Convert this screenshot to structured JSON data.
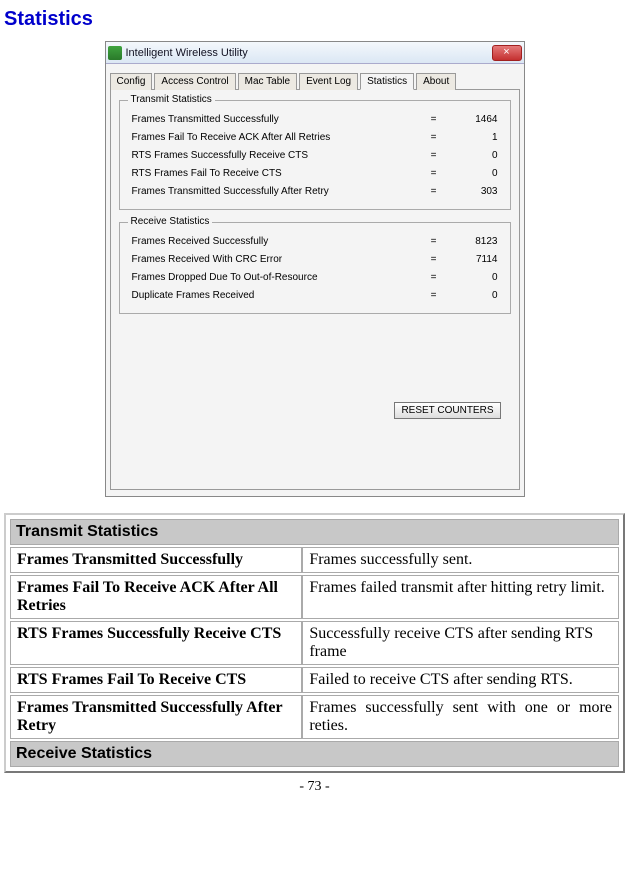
{
  "page": {
    "title": "Statistics",
    "pageNum": "- 73 -"
  },
  "window": {
    "title": "Intelligent Wireless Utility",
    "closeGlyph": "×",
    "tabs": [
      "Config",
      "Access Control",
      "Mac Table",
      "Event Log",
      "Statistics",
      "About"
    ],
    "activeTabIndex": 4,
    "resetLabel": "RESET COUNTERS"
  },
  "transmit": {
    "legend": "Transmit Statistics",
    "rows": [
      {
        "label": "Frames Transmitted Successfully",
        "value": "1464"
      },
      {
        "label": "Frames Fail To Receive ACK After All Retries",
        "value": "1"
      },
      {
        "label": "RTS Frames Successfully Receive CTS",
        "value": "0"
      },
      {
        "label": "RTS Frames Fail To Receive CTS",
        "value": "0"
      },
      {
        "label": "Frames Transmitted Successfully After Retry",
        "value": "303"
      }
    ]
  },
  "receive": {
    "legend": "Receive Statistics",
    "rows": [
      {
        "label": "Frames Received Successfully",
        "value": "8123"
      },
      {
        "label": "Frames Received With CRC Error",
        "value": "7114"
      },
      {
        "label": "Frames Dropped Due To Out-of-Resource",
        "value": "0"
      },
      {
        "label": "Duplicate Frames Received",
        "value": "0"
      }
    ]
  },
  "doc": {
    "section1": "Transmit Statistics",
    "section2": "Receive Statistics",
    "rows": [
      {
        "l": "Frames Transmitted Successfully",
        "r": "Frames successfully sent."
      },
      {
        "l": "Frames Fail To Receive ACK After All Retries",
        "r": "Frames failed transmit after hitting retry limit."
      },
      {
        "l": "RTS Frames Successfully Receive CTS",
        "r": "Successfully receive CTS after sending RTS frame"
      },
      {
        "l": "RTS Frames Fail To Receive CTS",
        "r": "Failed to receive CTS after sending RTS."
      },
      {
        "l": "Frames Transmitted Successfully After Retry",
        "r": "Frames successfully sent with one or more reties."
      }
    ]
  }
}
